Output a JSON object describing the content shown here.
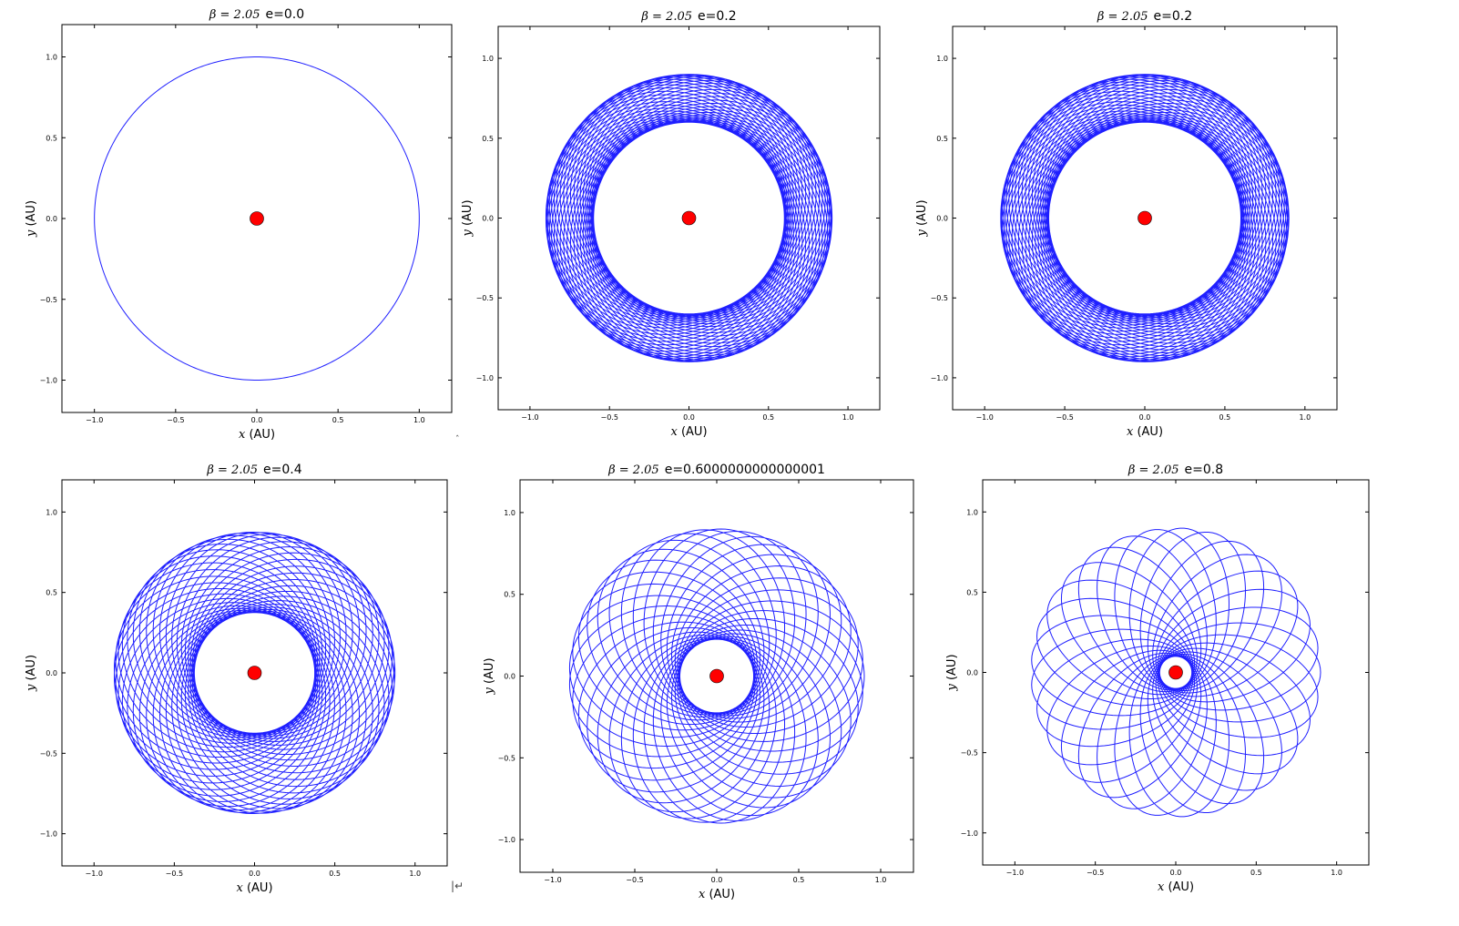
{
  "chart_data": [
    {
      "type": "line",
      "title_beta": "β = 2.05",
      "title_e": "e=0.0",
      "e": 0.0,
      "beta": 2.05,
      "xlabel_var": "x",
      "xlabel_unit": " (AU)",
      "ylabel_var": "y",
      "ylabel_unit": " (AU)",
      "xlim": [
        -1.2,
        1.2
      ],
      "ylim": [
        -1.2,
        1.2
      ],
      "xticks": [
        "−1.0",
        "−0.5",
        "0.0",
        "0.5",
        "1.0"
      ],
      "yticks": [
        "−1.0",
        "−0.5",
        "0.0",
        "0.5",
        "1.0"
      ],
      "tick_values": [
        -1.0,
        -0.5,
        0.0,
        0.5,
        1.0
      ],
      "orbit_a": 1.0,
      "precession_cycles": 1,
      "orbit_color": "#1f1fff",
      "central_body_color": "#ff0000"
    },
    {
      "type": "line",
      "title_beta": "β = 2.05",
      "title_e": "e=0.2",
      "e": 0.2,
      "beta": 2.05,
      "xlabel_var": "x",
      "xlabel_unit": " (AU)",
      "ylabel_var": "y",
      "ylabel_unit": " (AU)",
      "xlim": [
        -1.2,
        1.2
      ],
      "ylim": [
        -1.2,
        1.2
      ],
      "xticks": [
        "−1.0",
        "−0.5",
        "0.0",
        "0.5",
        "1.0"
      ],
      "yticks": [
        "−1.0",
        "−0.5",
        "0.0",
        "0.5",
        "1.0"
      ],
      "tick_values": [
        -1.0,
        -0.5,
        0.0,
        0.5,
        1.0
      ],
      "orbit_a": 0.75,
      "precession_cycles": 44,
      "orbit_color": "#1f1fff",
      "central_body_color": "#ff0000"
    },
    {
      "type": "line",
      "title_beta": "β = 2.05",
      "title_e": "e=0.2",
      "e": 0.2,
      "beta": 2.05,
      "xlabel_var": "x",
      "xlabel_unit": " (AU)",
      "ylabel_var": "y",
      "ylabel_unit": " (AU)",
      "xlim": [
        -1.2,
        1.2
      ],
      "ylim": [
        -1.2,
        1.2
      ],
      "xticks": [
        "−1.0",
        "−0.5",
        "0.0",
        "0.5",
        "1.0"
      ],
      "yticks": [
        "−1.0",
        "−0.5",
        "0.0",
        "0.5",
        "1.0"
      ],
      "tick_values": [
        -1.0,
        -0.5,
        0.0,
        0.5,
        1.0
      ],
      "orbit_a": 0.75,
      "precession_cycles": 44,
      "orbit_color": "#1f1fff",
      "central_body_color": "#ff0000"
    },
    {
      "type": "line",
      "title_beta": "β = 2.05",
      "title_e": "e=0.4",
      "e": 0.4,
      "beta": 2.05,
      "xlabel_var": "x",
      "xlabel_unit": " (AU)",
      "ylabel_var": "y",
      "ylabel_unit": " (AU)",
      "xlim": [
        -1.2,
        1.2
      ],
      "ylim": [
        -1.2,
        1.2
      ],
      "xticks": [
        "−1.0",
        "−0.5",
        "0.0",
        "0.5",
        "1.0"
      ],
      "yticks": [
        "−1.0",
        "−0.5",
        "0.0",
        "0.5",
        "1.0"
      ],
      "tick_values": [
        -1.0,
        -0.5,
        0.0,
        0.5,
        1.0
      ],
      "orbit_a": 0.625,
      "precession_cycles": 40,
      "orbit_color": "#1f1fff",
      "central_body_color": "#ff0000"
    },
    {
      "type": "line",
      "title_beta": "β = 2.05",
      "title_e": "e=0.6000000000000001",
      "e": 0.6,
      "beta": 2.05,
      "xlabel_var": "x",
      "xlabel_unit": " (AU)",
      "ylabel_var": "y",
      "ylabel_unit": " (AU)",
      "xlim": [
        -1.2,
        1.2
      ],
      "ylim": [
        -1.2,
        1.2
      ],
      "xticks": [
        "−1.0",
        "−0.5",
        "0.0",
        "0.5",
        "1.0"
      ],
      "yticks": [
        "−1.0",
        "−0.5",
        "0.0",
        "0.5",
        "1.0"
      ],
      "tick_values": [
        -1.0,
        -0.5,
        0.0,
        0.5,
        1.0
      ],
      "orbit_a": 0.5625,
      "precession_cycles": 34,
      "orbit_color": "#1f1fff",
      "central_body_color": "#ff0000"
    },
    {
      "type": "line",
      "title_beta": "β = 2.05",
      "title_e": "e=0.8",
      "e": 0.8,
      "beta": 2.05,
      "xlabel_var": "x",
      "xlabel_unit": " (AU)",
      "ylabel_var": "y",
      "ylabel_unit": " (AU)",
      "xlim": [
        -1.2,
        1.2
      ],
      "ylim": [
        -1.2,
        1.2
      ],
      "xticks": [
        "−1.0",
        "−0.5",
        "0.0",
        "0.5",
        "1.0"
      ],
      "yticks": [
        "−1.0",
        "−0.5",
        "0.0",
        "0.5",
        "1.0"
      ],
      "tick_values": [
        -1.0,
        -0.5,
        0.0,
        0.5,
        1.0
      ],
      "orbit_a": 0.5,
      "precession_cycles": 30,
      "orbit_color": "#1f1fff",
      "central_body_color": "#ff0000"
    }
  ]
}
